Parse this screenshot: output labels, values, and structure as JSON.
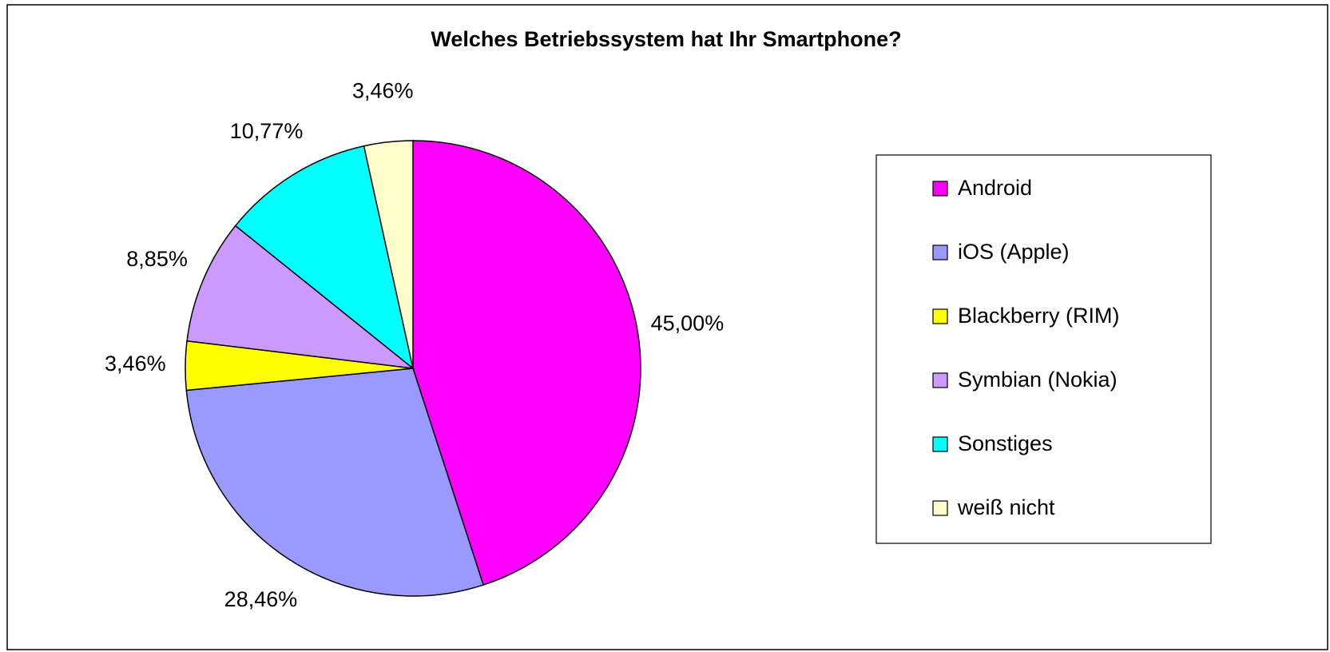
{
  "chart_data": {
    "type": "pie",
    "title": "Welches Betriebssystem hat Ihr Smartphone?",
    "categories": [
      "Android",
      "iOS (Apple)",
      "Blackberry (RIM)",
      "Symbian (Nokia)",
      "Sonstiges",
      "weiß nicht"
    ],
    "values": [
      45.0,
      28.46,
      3.46,
      8.85,
      10.77,
      3.46
    ],
    "value_labels": [
      "45,00%",
      "28,46%",
      "3,46%",
      "8,85%",
      "10,77%",
      "3,46%"
    ],
    "colors": [
      "#FF00FF",
      "#9999FF",
      "#FFFF00",
      "#CC99FF",
      "#00FFFF",
      "#FFFFCC"
    ],
    "legend": "right"
  }
}
